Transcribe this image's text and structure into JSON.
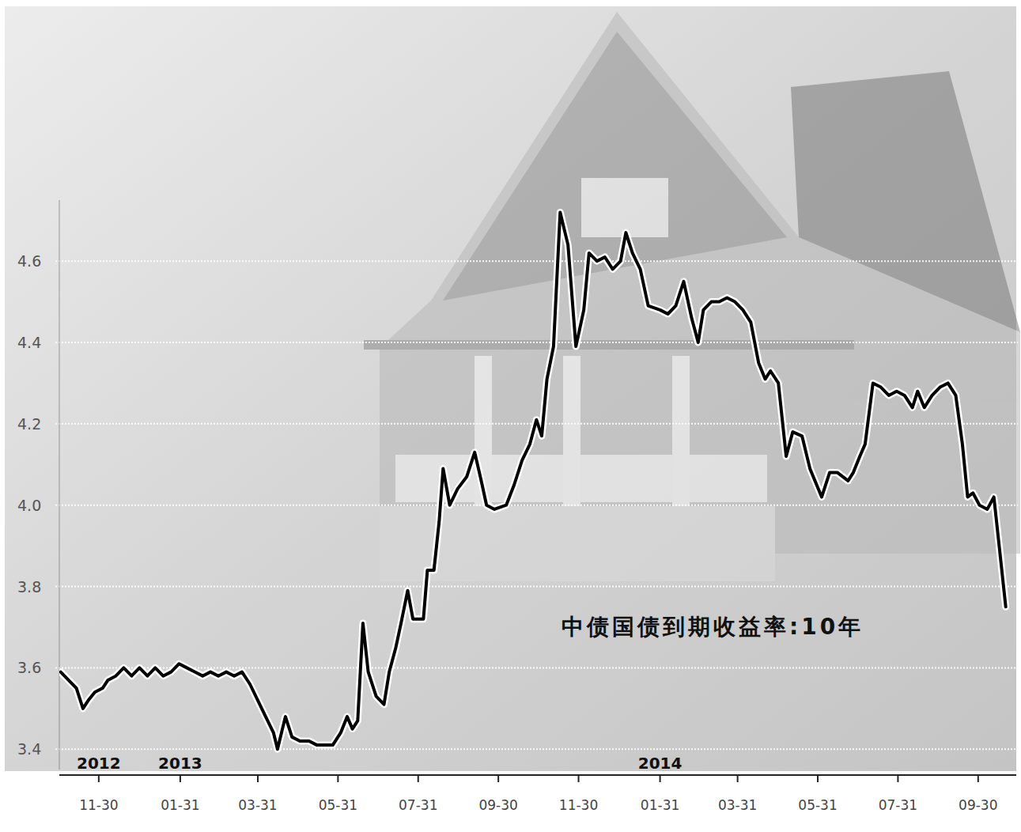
{
  "chart_data": {
    "type": "line",
    "title": "中债国债到期收益率:10年",
    "color": "#000000",
    "grid": true,
    "x": [
      "2012-11-01",
      "2012-11-07",
      "2012-11-13",
      "2012-11-18",
      "2012-11-22",
      "2012-11-27",
      "2012-12-03",
      "2012-12-07",
      "2012-12-13",
      "2012-12-19",
      "2012-12-25",
      "2012-12-31",
      "2013-01-06",
      "2013-01-12",
      "2013-01-18",
      "2013-01-24",
      "2013-01-30",
      "2013-02-05",
      "2013-02-11",
      "2013-02-17",
      "2013-02-23",
      "2013-03-01",
      "2013-03-07",
      "2013-03-13",
      "2013-03-19",
      "2013-03-25",
      "2013-03-31",
      "2013-04-06",
      "2013-04-12",
      "2013-04-15",
      "2013-04-21",
      "2013-04-26",
      "2013-05-02",
      "2013-05-09",
      "2013-05-15",
      "2013-05-21",
      "2013-05-27",
      "2013-06-02",
      "2013-06-07",
      "2013-06-11",
      "2013-06-15",
      "2013-06-19",
      "2013-06-23",
      "2013-06-29",
      "2013-07-05",
      "2013-07-09",
      "2013-07-14",
      "2013-07-18",
      "2013-07-23",
      "2013-07-27",
      "2013-08-04",
      "2013-08-07",
      "2013-08-12",
      "2013-08-16",
      "2013-08-19",
      "2013-08-24",
      "2013-08-30",
      "2013-09-06",
      "2013-09-12",
      "2013-09-17",
      "2013-09-21",
      "2013-09-27",
      "2013-10-06",
      "2013-10-12",
      "2013-10-18",
      "2013-10-24",
      "2013-10-29",
      "2013-11-02",
      "2013-11-06",
      "2013-11-11",
      "2013-11-16",
      "2013-11-22",
      "2013-11-28",
      "2013-12-04",
      "2013-12-08",
      "2013-12-14",
      "2013-12-20",
      "2013-12-26",
      "2014-01-01",
      "2014-01-05",
      "2014-01-10",
      "2014-01-16",
      "2014-01-22",
      "2014-01-31",
      "2014-02-06",
      "2014-02-12",
      "2014-02-18",
      "2014-02-24",
      "2014-03-01",
      "2014-03-05",
      "2014-03-11",
      "2014-03-17",
      "2014-03-23",
      "2014-03-29",
      "2014-04-04",
      "2014-04-10",
      "2014-04-16",
      "2014-04-21",
      "2014-04-25",
      "2014-05-01",
      "2014-05-07",
      "2014-05-12",
      "2014-05-19",
      "2014-05-25",
      "2014-06-03",
      "2014-06-09",
      "2014-06-15",
      "2014-06-23",
      "2014-06-27",
      "2014-07-02",
      "2014-07-06",
      "2014-07-12",
      "2014-07-18",
      "2014-07-24",
      "2014-07-30",
      "2014-08-05",
      "2014-08-11",
      "2014-08-15",
      "2014-08-20",
      "2014-08-26",
      "2014-09-01",
      "2014-09-07",
      "2014-09-13",
      "2014-09-18",
      "2014-09-22",
      "2014-09-26",
      "2014-10-01",
      "2014-10-07",
      "2014-10-12",
      "2014-10-16",
      "2014-10-21"
    ],
    "values": [
      3.59,
      3.57,
      3.55,
      3.5,
      3.52,
      3.54,
      3.55,
      3.57,
      3.58,
      3.6,
      3.58,
      3.6,
      3.58,
      3.6,
      3.58,
      3.59,
      3.61,
      3.6,
      3.59,
      3.58,
      3.59,
      3.58,
      3.59,
      3.58,
      3.59,
      3.56,
      3.52,
      3.48,
      3.44,
      3.4,
      3.48,
      3.43,
      3.42,
      3.42,
      3.41,
      3.41,
      3.41,
      3.44,
      3.48,
      3.45,
      3.47,
      3.71,
      3.59,
      3.53,
      3.51,
      3.59,
      3.65,
      3.71,
      3.79,
      3.72,
      3.72,
      3.84,
      3.84,
      3.96,
      4.09,
      4.0,
      4.04,
      4.07,
      4.13,
      4.06,
      4.0,
      3.99,
      4.0,
      4.05,
      4.11,
      4.15,
      4.21,
      4.17,
      4.31,
      4.39,
      4.72,
      4.64,
      4.39,
      4.48,
      4.62,
      4.6,
      4.61,
      4.58,
      4.6,
      4.67,
      4.62,
      4.58,
      4.49,
      4.48,
      4.47,
      4.49,
      4.55,
      4.46,
      4.4,
      4.48,
      4.5,
      4.5,
      4.51,
      4.5,
      4.48,
      4.45,
      4.35,
      4.31,
      4.33,
      4.3,
      4.12,
      4.18,
      4.17,
      4.09,
      4.02,
      4.08,
      4.08,
      4.06,
      4.08,
      4.12,
      4.15,
      4.3,
      4.29,
      4.27,
      4.28,
      4.27,
      4.24,
      4.28,
      4.24,
      4.27,
      4.29,
      4.3,
      4.27,
      4.15,
      4.02,
      4.03,
      4.0,
      3.99,
      4.02,
      3.9,
      3.75
    ],
    "xlim": [
      "2012-10-31",
      "2014-10-29"
    ],
    "xticks": [
      {
        "value": "2012-11-30",
        "label": "11-30"
      },
      {
        "value": "2013-01-31",
        "label": "01-31"
      },
      {
        "value": "2013-03-31",
        "label": "03-31"
      },
      {
        "value": "2013-05-31",
        "label": "05-31"
      },
      {
        "value": "2013-07-31",
        "label": "07-31"
      },
      {
        "value": "2013-09-30",
        "label": "09-30"
      },
      {
        "value": "2013-11-30",
        "label": "11-30"
      },
      {
        "value": "2014-01-31",
        "label": "01-31"
      },
      {
        "value": "2014-03-31",
        "label": "03-31"
      },
      {
        "value": "2014-05-31",
        "label": "05-31"
      },
      {
        "value": "2014-07-31",
        "label": "07-31"
      },
      {
        "value": "2014-09-30",
        "label": "09-30"
      }
    ],
    "ylim": [
      3.35,
      4.75
    ],
    "yticks": [
      3.4,
      3.6,
      3.8,
      {
        "value": 4,
        "label": "4.0"
      },
      4.2,
      4.4,
      4.6
    ],
    "annotations": [
      {
        "text": "2012",
        "x": "2012-11-30"
      },
      {
        "text": "2013",
        "x": "2013-01-31"
      },
      {
        "text": "2014",
        "x": "2014-01-31"
      }
    ]
  }
}
